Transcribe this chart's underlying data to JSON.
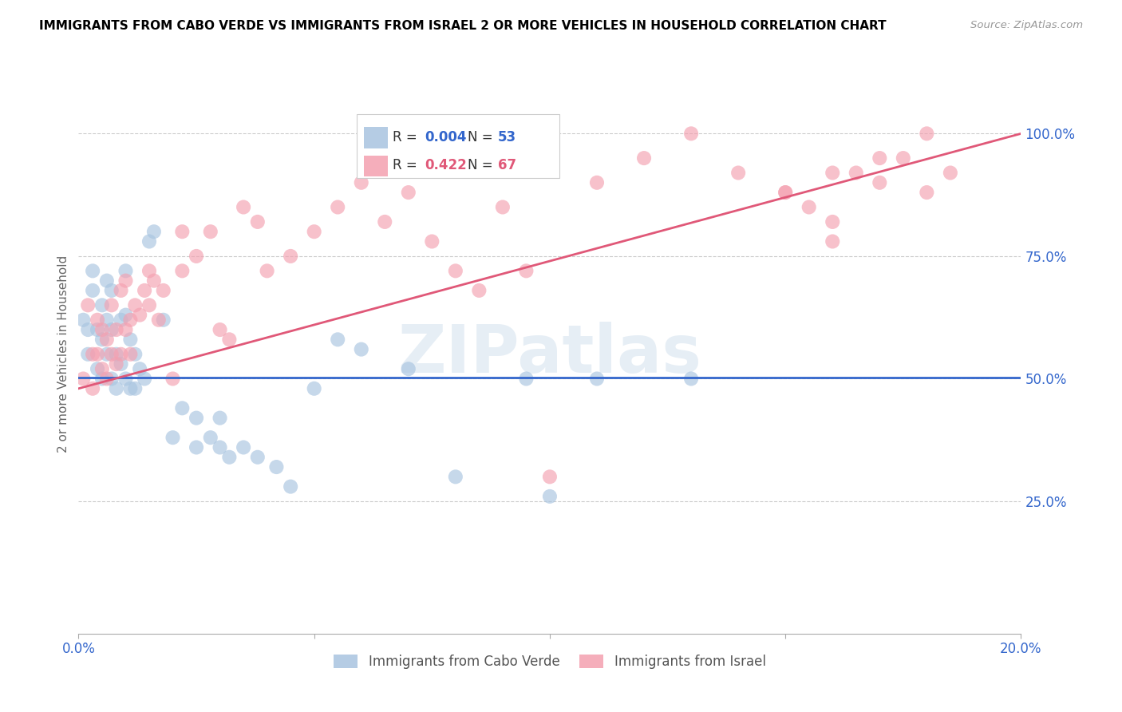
{
  "title": "IMMIGRANTS FROM CABO VERDE VS IMMIGRANTS FROM ISRAEL 2 OR MORE VEHICLES IN HOUSEHOLD CORRELATION CHART",
  "source": "Source: ZipAtlas.com",
  "ylabel": "2 or more Vehicles in Household",
  "cabo_verde_R": 0.004,
  "cabo_verde_N": 53,
  "israel_R": 0.422,
  "israel_N": 67,
  "cabo_verde_color": "#a8c4e0",
  "israel_color": "#f4a0b0",
  "cabo_verde_line_color": "#3366cc",
  "israel_line_color": "#e05878",
  "watermark": "ZIPatlas",
  "xlim": [
    0.0,
    0.2
  ],
  "ylim": [
    -0.02,
    1.12
  ],
  "cabo_verde_line": [
    0.0,
    0.503,
    0.2,
    0.503
  ],
  "israel_line": [
    0.0,
    0.48,
    0.2,
    1.0
  ],
  "cabo_verde_x": [
    0.001,
    0.002,
    0.002,
    0.003,
    0.003,
    0.004,
    0.004,
    0.005,
    0.005,
    0.005,
    0.006,
    0.006,
    0.006,
    0.007,
    0.007,
    0.007,
    0.008,
    0.008,
    0.009,
    0.009,
    0.01,
    0.01,
    0.01,
    0.011,
    0.011,
    0.012,
    0.012,
    0.013,
    0.014,
    0.015,
    0.016,
    0.018,
    0.02,
    0.022,
    0.025,
    0.025,
    0.028,
    0.03,
    0.03,
    0.032,
    0.035,
    0.038,
    0.042,
    0.045,
    0.05,
    0.055,
    0.06,
    0.07,
    0.08,
    0.095,
    0.1,
    0.11,
    0.13
  ],
  "cabo_verde_y": [
    0.62,
    0.6,
    0.55,
    0.72,
    0.68,
    0.6,
    0.52,
    0.65,
    0.58,
    0.5,
    0.7,
    0.62,
    0.55,
    0.68,
    0.6,
    0.5,
    0.55,
    0.48,
    0.62,
    0.53,
    0.72,
    0.63,
    0.5,
    0.58,
    0.48,
    0.55,
    0.48,
    0.52,
    0.5,
    0.78,
    0.8,
    0.62,
    0.38,
    0.44,
    0.42,
    0.36,
    0.38,
    0.42,
    0.36,
    0.34,
    0.36,
    0.34,
    0.32,
    0.28,
    0.48,
    0.58,
    0.56,
    0.52,
    0.3,
    0.5,
    0.26,
    0.5,
    0.5
  ],
  "israel_x": [
    0.001,
    0.002,
    0.003,
    0.003,
    0.004,
    0.004,
    0.005,
    0.005,
    0.006,
    0.006,
    0.007,
    0.007,
    0.008,
    0.008,
    0.009,
    0.009,
    0.01,
    0.01,
    0.011,
    0.011,
    0.012,
    0.013,
    0.014,
    0.015,
    0.015,
    0.016,
    0.017,
    0.018,
    0.02,
    0.022,
    0.022,
    0.025,
    0.028,
    0.03,
    0.032,
    0.035,
    0.038,
    0.04,
    0.045,
    0.05,
    0.055,
    0.06,
    0.065,
    0.07,
    0.075,
    0.08,
    0.085,
    0.09,
    0.095,
    0.1,
    0.11,
    0.12,
    0.13,
    0.14,
    0.15,
    0.16,
    0.17,
    0.18,
    0.155,
    0.16,
    0.165,
    0.15,
    0.16,
    0.17,
    0.175,
    0.18,
    0.185
  ],
  "israel_y": [
    0.5,
    0.65,
    0.48,
    0.55,
    0.55,
    0.62,
    0.52,
    0.6,
    0.5,
    0.58,
    0.55,
    0.65,
    0.6,
    0.53,
    0.68,
    0.55,
    0.6,
    0.7,
    0.55,
    0.62,
    0.65,
    0.63,
    0.68,
    0.72,
    0.65,
    0.7,
    0.62,
    0.68,
    0.5,
    0.8,
    0.72,
    0.75,
    0.8,
    0.6,
    0.58,
    0.85,
    0.82,
    0.72,
    0.75,
    0.8,
    0.85,
    0.9,
    0.82,
    0.88,
    0.78,
    0.72,
    0.68,
    0.85,
    0.72,
    0.3,
    0.9,
    0.95,
    1.0,
    0.92,
    0.88,
    0.92,
    0.95,
    1.0,
    0.85,
    0.78,
    0.92,
    0.88,
    0.82,
    0.9,
    0.95,
    0.88,
    0.92
  ]
}
